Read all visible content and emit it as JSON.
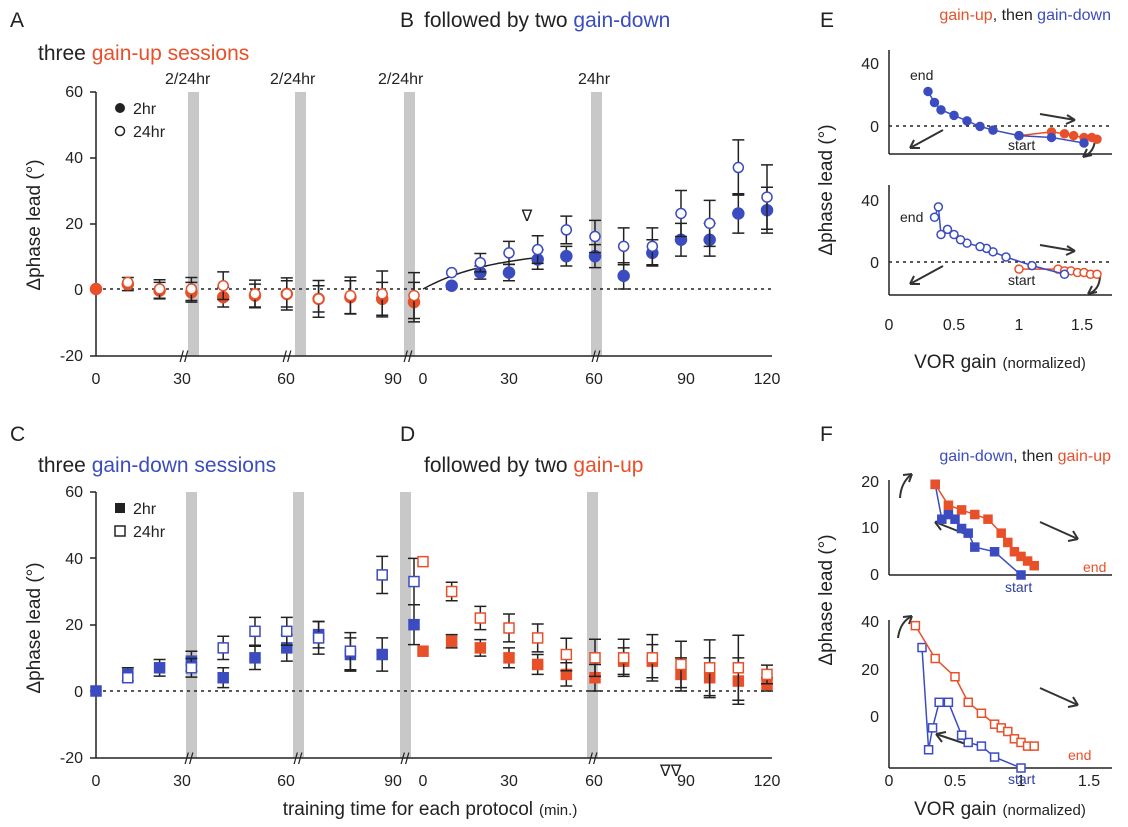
{
  "colors": {
    "red": "#e8502a",
    "blue": "#3b4cc0",
    "blue_dark": "#2e3f9e",
    "bar": "#c8c8c8",
    "axis": "#222222"
  },
  "labels": {
    "A": "A",
    "B": "B",
    "C": "C",
    "D": "D",
    "E": "E",
    "F": "F",
    "ylabel": "Δphase lead (°)",
    "xlabel_main": "training time for each protocol",
    "xlabel_unit": "(min.)",
    "vor_main": "VOR gain",
    "vor_unit": "(normalized)",
    "break": "//",
    "sig_B": "∇",
    "sig_D": "∇∇",
    "end": "end",
    "start": "start"
  },
  "titles": {
    "A": {
      "pre": "three ",
      "colored": "gain-up sessions"
    },
    "B": {
      "pre": "followed by two ",
      "colored": "gain-down"
    },
    "C": {
      "pre": "three ",
      "colored": "gain-down sessions"
    },
    "D": {
      "pre": "followed by two ",
      "colored": "gain-up"
    },
    "E": {
      "first": "gain-up",
      "mid": ", then ",
      "second": "gain-down"
    },
    "F": {
      "first": "gain-down",
      "mid": ", then ",
      "second": "gain-up"
    }
  },
  "legend": {
    "top": [
      "2hr",
      "24hr"
    ],
    "bottom": [
      "2hr",
      "24hr"
    ]
  },
  "bar_labels_top": [
    "2/24hr",
    "2/24hr",
    "2/24hr",
    "24hr"
  ],
  "chart_data": [
    {
      "id": "AB",
      "type": "scatter",
      "ylabel": "Δphase lead (°)",
      "ylim": [
        -20,
        60
      ],
      "y_ticks": [
        "-20",
        "0",
        "20",
        "40",
        "60"
      ],
      "x_tick_labels": [
        "0",
        "30",
        "60",
        "90",
        "0",
        "30",
        "60",
        "90",
        "120"
      ],
      "series": [
        {
          "name": "2hr",
          "marker": "filled-circle",
          "session": "gain-up",
          "x": [
            0,
            9,
            18,
            27,
            36,
            45,
            54,
            63,
            72,
            81,
            90
          ],
          "y": [
            0,
            1.5,
            -0.5,
            -1,
            -2.5,
            -2,
            -1.5,
            -3,
            -2.5,
            -3,
            -4
          ]
        },
        {
          "name": "24hr",
          "marker": "open-circle",
          "session": "gain-up",
          "x": [
            9,
            18,
            27,
            36,
            45,
            54,
            63,
            72,
            81,
            90
          ],
          "y": [
            2,
            0,
            0,
            1,
            -1.5,
            -1.5,
            -3,
            -2,
            -1.5,
            -2
          ]
        },
        {
          "name": "2hr",
          "marker": "filled-circle",
          "session": "gain-down",
          "x": [
            10,
            20,
            30,
            40,
            50,
            60,
            70,
            80,
            90,
            100,
            110,
            120
          ],
          "y": [
            1,
            5,
            5,
            9,
            10,
            10,
            4,
            11,
            15,
            15,
            23,
            24
          ]
        },
        {
          "name": "24hr",
          "marker": "open-circle",
          "session": "gain-down",
          "x": [
            10,
            20,
            30,
            40,
            50,
            60,
            70,
            80,
            90,
            100,
            110,
            120
          ],
          "y": [
            5,
            8,
            11,
            12,
            18,
            16,
            13,
            13,
            23,
            20,
            37,
            28
          ]
        }
      ]
    },
    {
      "id": "CD",
      "type": "scatter",
      "ylabel": "Δphase lead (°)",
      "xlabel": "training time for each protocol (min.)",
      "ylim": [
        -20,
        60
      ],
      "y_ticks": [
        "-20",
        "0",
        "20",
        "40",
        "60"
      ],
      "x_tick_labels": [
        "0",
        "30",
        "60",
        "90",
        "0",
        "30",
        "60",
        "90",
        "120"
      ],
      "series": [
        {
          "name": "2hr",
          "marker": "filled-square",
          "session": "gain-down",
          "x": [
            0,
            9,
            18,
            27,
            36,
            45,
            54,
            63,
            72,
            81,
            90
          ],
          "y": [
            0,
            5,
            7,
            9,
            4,
            10,
            13,
            17,
            11,
            11,
            20
          ]
        },
        {
          "name": "24hr",
          "marker": "open-square",
          "session": "gain-down",
          "x": [
            9,
            27,
            36,
            45,
            54,
            63,
            72,
            81,
            90
          ],
          "y": [
            4,
            7,
            13,
            18,
            18,
            16,
            12,
            35,
            33
          ]
        },
        {
          "name": "2hr",
          "marker": "filled-square",
          "session": "gain-up",
          "x": [
            0,
            10,
            20,
            30,
            40,
            50,
            60,
            70,
            80,
            90,
            100,
            110,
            120
          ],
          "y": [
            12,
            15,
            13,
            10,
            8,
            5,
            4,
            9,
            9,
            5,
            4,
            3,
            2
          ]
        },
        {
          "name": "24hr",
          "marker": "open-square",
          "session": "gain-up",
          "x": [
            0,
            10,
            20,
            30,
            40,
            50,
            60,
            70,
            80,
            90,
            100,
            110,
            120
          ],
          "y": [
            39,
            30,
            22,
            19,
            16,
            11,
            10,
            10,
            10,
            8,
            7,
            7,
            5
          ]
        }
      ]
    },
    {
      "id": "E",
      "type": "scatter",
      "xlabel": "VOR gain (normalized)",
      "ylabel": "Δphase lead (°)",
      "x_ticks": [
        "0",
        "0.5",
        "1",
        "1.5"
      ],
      "subplots": [
        {
          "ylim": [
            -10,
            40
          ],
          "y_ticks": [
            "0",
            "40"
          ],
          "marker": "filled-circle",
          "series": [
            {
              "name": "gain-up",
              "x": [
                1.0,
                1.25,
                1.35,
                1.42,
                1.5,
                1.56,
                1.6
              ],
              "y": [
                0,
                2,
                1,
                0,
                -1,
                -1,
                -2
              ]
            },
            {
              "name": "gain-down",
              "x": [
                1.5,
                1.25,
                1.0,
                0.8,
                0.7,
                0.6,
                0.5,
                0.4,
                0.35,
                0.3
              ],
              "y": [
                -4,
                -1,
                0,
                3,
                5,
                8,
                11,
                14,
                18,
                24
              ]
            }
          ]
        },
        {
          "ylim": [
            -15,
            40
          ],
          "y_ticks": [
            "0",
            "40"
          ],
          "marker": "open-circle",
          "series": [
            {
              "name": "gain-up",
              "x": [
                1.0,
                1.3,
                1.35,
                1.4,
                1.45,
                1.5,
                1.55,
                1.6
              ],
              "y": [
                0,
                0,
                -1,
                -1,
                -2,
                -2,
                -3,
                -3
              ]
            },
            {
              "name": "gain-down",
              "x": [
                1.35,
                1.1,
                0.9,
                0.8,
                0.75,
                0.7,
                0.6,
                0.55,
                0.5,
                0.45,
                0.4,
                0.38,
                0.35
              ],
              "y": [
                -3,
                2,
                7,
                10,
                12,
                13,
                15,
                17,
                20,
                23,
                20,
                36,
                30
              ]
            }
          ]
        }
      ]
    },
    {
      "id": "F",
      "type": "scatter",
      "xlabel": "VOR gain (normalized)",
      "ylabel": "Δphase lead (°)",
      "x_ticks": [
        "0",
        "0.5",
        "1",
        "1.5"
      ],
      "subplots": [
        {
          "ylim": [
            0,
            20
          ],
          "y_ticks": [
            "0",
            "10",
            "20"
          ],
          "marker": "filled-square",
          "series": [
            {
              "name": "gain-down",
              "x": [
                1.0,
                0.8,
                0.65,
                0.6,
                0.55,
                0.5,
                0.45,
                0.4,
                0.35
              ],
              "y": [
                0,
                5,
                6,
                9,
                10,
                12,
                13,
                12,
                19.5
              ]
            },
            {
              "name": "gain-up",
              "x": [
                0.35,
                0.45,
                0.55,
                0.65,
                0.75,
                0.85,
                0.9,
                0.95,
                1.0,
                1.05,
                1.1
              ],
              "y": [
                19.5,
                15,
                14,
                13,
                12,
                9,
                7,
                5,
                4,
                3,
                2
              ]
            }
          ]
        },
        {
          "ylim": [
            0,
            40
          ],
          "y_ticks": [
            "0",
            "20",
            "40"
          ],
          "marker": "open-square",
          "series": [
            {
              "name": "gain-down",
              "x": [
                1.0,
                0.8,
                0.7,
                0.6,
                0.55,
                0.45,
                0.38,
                0.33,
                0.3,
                0.25
              ],
              "y": [
                0,
                3,
                6,
                7,
                9,
                18,
                18,
                11,
                5,
                33
              ]
            },
            {
              "name": "gain-up",
              "x": [
                0.2,
                0.35,
                0.5,
                0.6,
                0.7,
                0.8,
                0.85,
                0.9,
                0.95,
                1.0,
                1.05,
                1.1
              ],
              "y": [
                39,
                30,
                25,
                18,
                15,
                12,
                11,
                10,
                8,
                7,
                6,
                6
              ]
            }
          ]
        }
      ]
    }
  ]
}
